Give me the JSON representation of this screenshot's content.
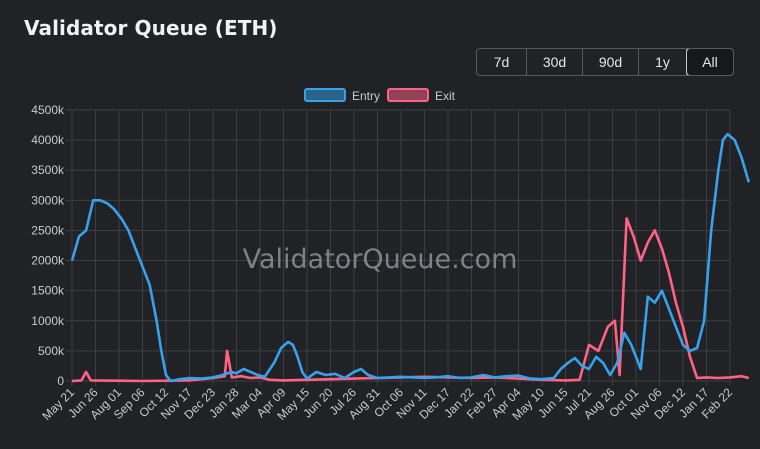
{
  "title": "Validator Queue (ETH)",
  "range_buttons": [
    {
      "label": "7d",
      "active": false
    },
    {
      "label": "30d",
      "active": false
    },
    {
      "label": "90d",
      "active": false
    },
    {
      "label": "1y",
      "active": false
    },
    {
      "label": "All",
      "active": true
    }
  ],
  "watermark": "ValidatorQueue.com",
  "colors": {
    "entry": "#36a2eb",
    "exit": "#ff6384",
    "grid": "#3b3e43",
    "background": "#212225"
  },
  "chart_data": {
    "type": "line",
    "title": "",
    "xlabel": "",
    "ylabel": "",
    "ylim": [
      0,
      4500000
    ],
    "y_ticks": [
      "0",
      "500k",
      "1000k",
      "1500k",
      "2000k",
      "2500k",
      "3000k",
      "3500k",
      "4000k",
      "4500k"
    ],
    "x_tick_labels": [
      "May 21",
      "Jun 26",
      "Aug 01",
      "Sep 06",
      "Oct 12",
      "Nov 17",
      "Dec 23",
      "Jan 28",
      "Mar 04",
      "Apr 09",
      "May 15",
      "Jun 20",
      "Jul 26",
      "Aug 31",
      "Oct 06",
      "Nov 11",
      "Dec 17",
      "Jan 22",
      "Feb 27",
      "Apr 04",
      "May 10",
      "Jun 15",
      "Jul 21",
      "Aug 26",
      "Oct 01",
      "Nov 06",
      "Dec 12",
      "Jan 17",
      "Feb 22"
    ],
    "legend": {
      "position": "top-center"
    },
    "grid": true,
    "series": [
      {
        "name": "Entry",
        "points": [
          [
            0,
            2000000
          ],
          [
            0.3,
            2400000
          ],
          [
            0.6,
            2500000
          ],
          [
            0.9,
            3000000
          ],
          [
            1.2,
            3000000
          ],
          [
            1.5,
            2950000
          ],
          [
            1.8,
            2850000
          ],
          [
            2.1,
            2700000
          ],
          [
            2.4,
            2500000
          ],
          [
            2.7,
            2200000
          ],
          [
            3.0,
            1900000
          ],
          [
            3.3,
            1600000
          ],
          [
            3.6,
            1000000
          ],
          [
            3.8,
            500000
          ],
          [
            4.0,
            100000
          ],
          [
            4.2,
            0
          ],
          [
            4.6,
            30000
          ],
          [
            5.0,
            50000
          ],
          [
            5.5,
            40000
          ],
          [
            6.0,
            60000
          ],
          [
            6.4,
            100000
          ],
          [
            6.8,
            150000
          ],
          [
            7.0,
            130000
          ],
          [
            7.3,
            200000
          ],
          [
            7.6,
            150000
          ],
          [
            7.9,
            100000
          ],
          [
            8.2,
            70000
          ],
          [
            8.6,
            300000
          ],
          [
            8.9,
            550000
          ],
          [
            9.2,
            650000
          ],
          [
            9.4,
            600000
          ],
          [
            9.6,
            400000
          ],
          [
            9.8,
            150000
          ],
          [
            10.0,
            40000
          ],
          [
            10.4,
            150000
          ],
          [
            10.8,
            100000
          ],
          [
            11.2,
            120000
          ],
          [
            11.6,
            50000
          ],
          [
            12.0,
            150000
          ],
          [
            12.3,
            200000
          ],
          [
            12.6,
            100000
          ],
          [
            13.0,
            50000
          ],
          [
            13.5,
            60000
          ],
          [
            14.0,
            70000
          ],
          [
            14.5,
            60000
          ],
          [
            15.0,
            50000
          ],
          [
            15.5,
            60000
          ],
          [
            16.0,
            80000
          ],
          [
            16.5,
            50000
          ],
          [
            17.0,
            60000
          ],
          [
            17.5,
            100000
          ],
          [
            18.0,
            60000
          ],
          [
            18.5,
            80000
          ],
          [
            19.0,
            90000
          ],
          [
            19.5,
            40000
          ],
          [
            20.0,
            30000
          ],
          [
            20.5,
            50000
          ],
          [
            20.8,
            200000
          ],
          [
            21.1,
            300000
          ],
          [
            21.4,
            380000
          ],
          [
            21.7,
            250000
          ],
          [
            22.0,
            200000
          ],
          [
            22.3,
            400000
          ],
          [
            22.6,
            300000
          ],
          [
            22.9,
            100000
          ],
          [
            23.2,
            300000
          ],
          [
            23.5,
            800000
          ],
          [
            23.8,
            600000
          ],
          [
            24.0,
            400000
          ],
          [
            24.2,
            200000
          ],
          [
            24.5,
            1400000
          ],
          [
            24.8,
            1300000
          ],
          [
            25.1,
            1500000
          ],
          [
            25.4,
            1200000
          ],
          [
            25.7,
            900000
          ],
          [
            26.0,
            600000
          ],
          [
            26.3,
            500000
          ],
          [
            26.6,
            550000
          ],
          [
            26.9,
            1000000
          ],
          [
            27.2,
            2500000
          ],
          [
            27.5,
            3500000
          ],
          [
            27.7,
            4000000
          ],
          [
            27.9,
            4100000
          ],
          [
            28.2,
            4000000
          ],
          [
            28.5,
            3700000
          ],
          [
            28.8,
            3300000
          ]
        ]
      },
      {
        "name": "Exit",
        "points": [
          [
            0,
            0
          ],
          [
            0.4,
            10000
          ],
          [
            0.6,
            150000
          ],
          [
            0.8,
            10000
          ],
          [
            3.0,
            0
          ],
          [
            5.0,
            10000
          ],
          [
            5.5,
            30000
          ],
          [
            6.0,
            50000
          ],
          [
            6.5,
            80000
          ],
          [
            6.6,
            500000
          ],
          [
            6.8,
            60000
          ],
          [
            7.2,
            80000
          ],
          [
            7.6,
            50000
          ],
          [
            8.0,
            60000
          ],
          [
            8.4,
            20000
          ],
          [
            9.0,
            10000
          ],
          [
            10.0,
            20000
          ],
          [
            11.0,
            30000
          ],
          [
            12.0,
            40000
          ],
          [
            13.0,
            50000
          ],
          [
            14.0,
            60000
          ],
          [
            15.0,
            70000
          ],
          [
            16.0,
            60000
          ],
          [
            17.0,
            50000
          ],
          [
            18.0,
            60000
          ],
          [
            19.0,
            40000
          ],
          [
            20.0,
            20000
          ],
          [
            21.0,
            10000
          ],
          [
            21.6,
            20000
          ],
          [
            22.0,
            600000
          ],
          [
            22.4,
            500000
          ],
          [
            22.8,
            900000
          ],
          [
            23.1,
            1000000
          ],
          [
            23.3,
            100000
          ],
          [
            23.6,
            2700000
          ],
          [
            23.9,
            2400000
          ],
          [
            24.2,
            2000000
          ],
          [
            24.5,
            2300000
          ],
          [
            24.8,
            2500000
          ],
          [
            25.1,
            2200000
          ],
          [
            25.4,
            1800000
          ],
          [
            25.7,
            1300000
          ],
          [
            26.0,
            900000
          ],
          [
            26.3,
            400000
          ],
          [
            26.6,
            50000
          ],
          [
            27.0,
            60000
          ],
          [
            27.5,
            50000
          ],
          [
            28.0,
            60000
          ],
          [
            28.5,
            80000
          ],
          [
            28.8,
            50000
          ]
        ]
      }
    ]
  }
}
